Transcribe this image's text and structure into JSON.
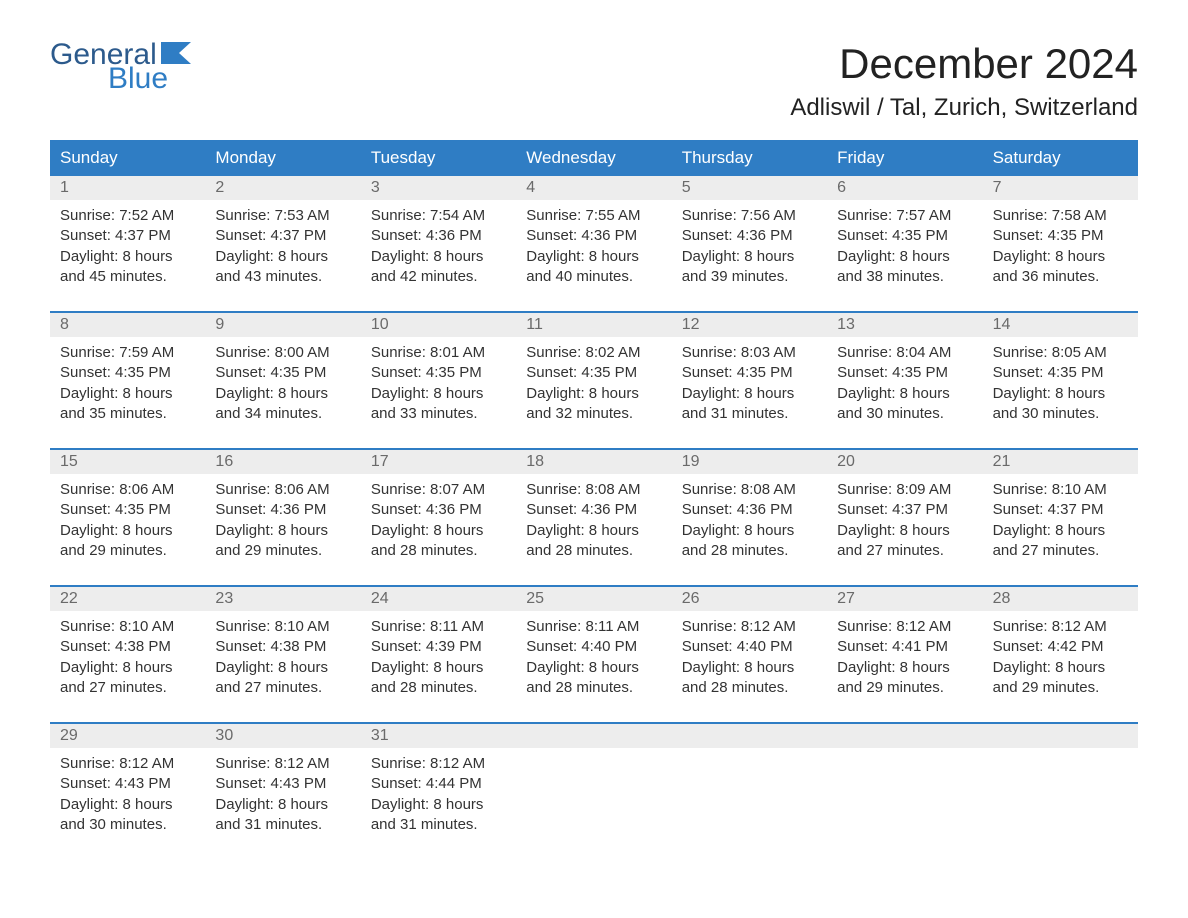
{
  "logo": {
    "line1": "General",
    "line2": "Blue"
  },
  "title": "December 2024",
  "location": "Adliswil / Tal, Zurich, Switzerland",
  "colors": {
    "header_bg": "#2f7dc4",
    "header_text": "#ffffff",
    "daynum_bg": "#ededed",
    "daynum_text": "#6a6a6a",
    "body_text": "#333333",
    "rule": "#2f7dc4",
    "logo_top": "#2c5a8c",
    "logo_bottom": "#2f7dc4"
  },
  "day_names": [
    "Sunday",
    "Monday",
    "Tuesday",
    "Wednesday",
    "Thursday",
    "Friday",
    "Saturday"
  ],
  "weeks": [
    [
      {
        "n": "1",
        "sunrise": "7:52 AM",
        "sunset": "4:37 PM",
        "dl1": "8 hours",
        "dl2": "and 45 minutes."
      },
      {
        "n": "2",
        "sunrise": "7:53 AM",
        "sunset": "4:37 PM",
        "dl1": "8 hours",
        "dl2": "and 43 minutes."
      },
      {
        "n": "3",
        "sunrise": "7:54 AM",
        "sunset": "4:36 PM",
        "dl1": "8 hours",
        "dl2": "and 42 minutes."
      },
      {
        "n": "4",
        "sunrise": "7:55 AM",
        "sunset": "4:36 PM",
        "dl1": "8 hours",
        "dl2": "and 40 minutes."
      },
      {
        "n": "5",
        "sunrise": "7:56 AM",
        "sunset": "4:36 PM",
        "dl1": "8 hours",
        "dl2": "and 39 minutes."
      },
      {
        "n": "6",
        "sunrise": "7:57 AM",
        "sunset": "4:35 PM",
        "dl1": "8 hours",
        "dl2": "and 38 minutes."
      },
      {
        "n": "7",
        "sunrise": "7:58 AM",
        "sunset": "4:35 PM",
        "dl1": "8 hours",
        "dl2": "and 36 minutes."
      }
    ],
    [
      {
        "n": "8",
        "sunrise": "7:59 AM",
        "sunset": "4:35 PM",
        "dl1": "8 hours",
        "dl2": "and 35 minutes."
      },
      {
        "n": "9",
        "sunrise": "8:00 AM",
        "sunset": "4:35 PM",
        "dl1": "8 hours",
        "dl2": "and 34 minutes."
      },
      {
        "n": "10",
        "sunrise": "8:01 AM",
        "sunset": "4:35 PM",
        "dl1": "8 hours",
        "dl2": "and 33 minutes."
      },
      {
        "n": "11",
        "sunrise": "8:02 AM",
        "sunset": "4:35 PM",
        "dl1": "8 hours",
        "dl2": "and 32 minutes."
      },
      {
        "n": "12",
        "sunrise": "8:03 AM",
        "sunset": "4:35 PM",
        "dl1": "8 hours",
        "dl2": "and 31 minutes."
      },
      {
        "n": "13",
        "sunrise": "8:04 AM",
        "sunset": "4:35 PM",
        "dl1": "8 hours",
        "dl2": "and 30 minutes."
      },
      {
        "n": "14",
        "sunrise": "8:05 AM",
        "sunset": "4:35 PM",
        "dl1": "8 hours",
        "dl2": "and 30 minutes."
      }
    ],
    [
      {
        "n": "15",
        "sunrise": "8:06 AM",
        "sunset": "4:35 PM",
        "dl1": "8 hours",
        "dl2": "and 29 minutes."
      },
      {
        "n": "16",
        "sunrise": "8:06 AM",
        "sunset": "4:36 PM",
        "dl1": "8 hours",
        "dl2": "and 29 minutes."
      },
      {
        "n": "17",
        "sunrise": "8:07 AM",
        "sunset": "4:36 PM",
        "dl1": "8 hours",
        "dl2": "and 28 minutes."
      },
      {
        "n": "18",
        "sunrise": "8:08 AM",
        "sunset": "4:36 PM",
        "dl1": "8 hours",
        "dl2": "and 28 minutes."
      },
      {
        "n": "19",
        "sunrise": "8:08 AM",
        "sunset": "4:36 PM",
        "dl1": "8 hours",
        "dl2": "and 28 minutes."
      },
      {
        "n": "20",
        "sunrise": "8:09 AM",
        "sunset": "4:37 PM",
        "dl1": "8 hours",
        "dl2": "and 27 minutes."
      },
      {
        "n": "21",
        "sunrise": "8:10 AM",
        "sunset": "4:37 PM",
        "dl1": "8 hours",
        "dl2": "and 27 minutes."
      }
    ],
    [
      {
        "n": "22",
        "sunrise": "8:10 AM",
        "sunset": "4:38 PM",
        "dl1": "8 hours",
        "dl2": "and 27 minutes."
      },
      {
        "n": "23",
        "sunrise": "8:10 AM",
        "sunset": "4:38 PM",
        "dl1": "8 hours",
        "dl2": "and 27 minutes."
      },
      {
        "n": "24",
        "sunrise": "8:11 AM",
        "sunset": "4:39 PM",
        "dl1": "8 hours",
        "dl2": "and 28 minutes."
      },
      {
        "n": "25",
        "sunrise": "8:11 AM",
        "sunset": "4:40 PM",
        "dl1": "8 hours",
        "dl2": "and 28 minutes."
      },
      {
        "n": "26",
        "sunrise": "8:12 AM",
        "sunset": "4:40 PM",
        "dl1": "8 hours",
        "dl2": "and 28 minutes."
      },
      {
        "n": "27",
        "sunrise": "8:12 AM",
        "sunset": "4:41 PM",
        "dl1": "8 hours",
        "dl2": "and 29 minutes."
      },
      {
        "n": "28",
        "sunrise": "8:12 AM",
        "sunset": "4:42 PM",
        "dl1": "8 hours",
        "dl2": "and 29 minutes."
      }
    ],
    [
      {
        "n": "29",
        "sunrise": "8:12 AM",
        "sunset": "4:43 PM",
        "dl1": "8 hours",
        "dl2": "and 30 minutes."
      },
      {
        "n": "30",
        "sunrise": "8:12 AM",
        "sunset": "4:43 PM",
        "dl1": "8 hours",
        "dl2": "and 31 minutes."
      },
      {
        "n": "31",
        "sunrise": "8:12 AM",
        "sunset": "4:44 PM",
        "dl1": "8 hours",
        "dl2": "and 31 minutes."
      },
      null,
      null,
      null,
      null
    ]
  ],
  "labels": {
    "sunrise": "Sunrise:",
    "sunset": "Sunset:",
    "daylight": "Daylight:"
  }
}
